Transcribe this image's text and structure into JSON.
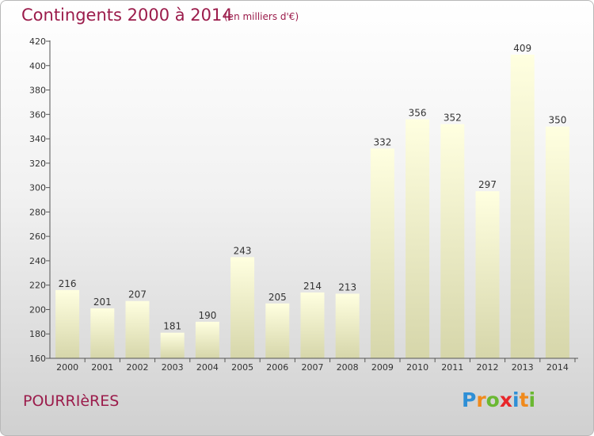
{
  "header": {
    "title": "Contingents 2000 à 2014",
    "subtitle": "(en milliers d'€)"
  },
  "footer": {
    "place": "POURRIèRES",
    "logo": {
      "letters": [
        "P",
        "r",
        "o",
        "x",
        "i",
        "t",
        "i"
      ],
      "colors": [
        "#2e8fd6",
        "#f08a1c",
        "#6ab832",
        "#e8262a",
        "#2e8fd6",
        "#f08a1c",
        "#6ab832"
      ]
    }
  },
  "colors": {
    "title": "#9b1c4b",
    "bar_top": "#ffffe0",
    "bar_bottom": "#d6d6aa",
    "axis": "#555555"
  },
  "chart_data": {
    "type": "bar",
    "categories": [
      "2000",
      "2001",
      "2002",
      "2003",
      "2004",
      "2005",
      "2006",
      "2007",
      "2008",
      "2009",
      "2010",
      "2011",
      "2012",
      "2013",
      "2014"
    ],
    "values": [
      216,
      201,
      207,
      181,
      190,
      243,
      205,
      214,
      213,
      332,
      356,
      352,
      297,
      409,
      350
    ],
    "ylim": [
      160,
      420
    ],
    "yticks": [
      160,
      180,
      200,
      220,
      240,
      260,
      280,
      300,
      320,
      340,
      360,
      380,
      400,
      420
    ],
    "grid": false,
    "data_labels": true
  }
}
